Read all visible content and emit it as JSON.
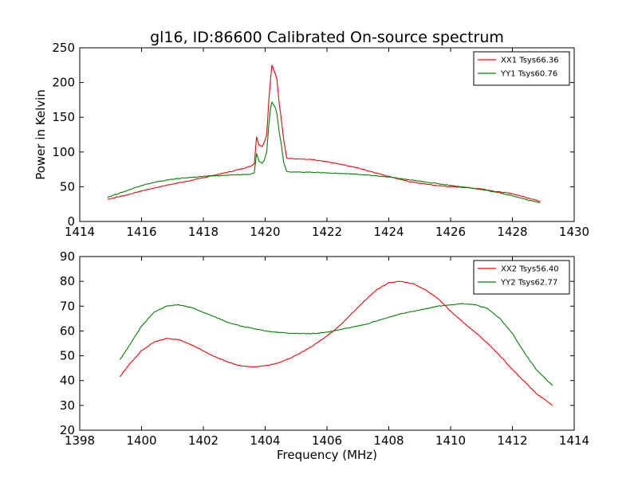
{
  "figure": {
    "title": "gl16, ID:86600 Calibrated On-source spectrum",
    "xlabel": "Frequency (MHz)",
    "ylabel": "Power in Kelvin"
  },
  "colors": {
    "red": "#ff0000",
    "green": "#008000"
  },
  "chart_data": [
    {
      "type": "line",
      "title": "gl16, ID:86600 Calibrated On-source spectrum",
      "xlabel": "",
      "ylabel": "Power in Kelvin",
      "xlim": [
        1414,
        1430
      ],
      "ylim": [
        0,
        250
      ],
      "xticks": [
        "1414",
        "1416",
        "1418",
        "1420",
        "1422",
        "1424",
        "1426",
        "1428",
        "1430"
      ],
      "yticks": [
        "0",
        "50",
        "100",
        "150",
        "200",
        "250"
      ],
      "legend_position": "top-right",
      "series": [
        {
          "name": "XX1 Tsys66.36",
          "color": "#ff0000",
          "x": [
            1414.9,
            1415.5,
            1416.0,
            1416.5,
            1417.0,
            1417.5,
            1418.0,
            1418.5,
            1419.0,
            1419.5,
            1419.65,
            1419.72,
            1419.8,
            1419.9,
            1419.97,
            1420.05,
            1420.12,
            1420.18,
            1420.22,
            1420.28,
            1420.33,
            1420.38,
            1420.45,
            1420.52,
            1420.6,
            1420.7,
            1421.0,
            1421.5,
            1422.0,
            1422.5,
            1423.0,
            1423.5,
            1424.0,
            1424.5,
            1425.0,
            1425.5,
            1426.0,
            1426.5,
            1427.0,
            1427.5,
            1428.0,
            1428.5,
            1428.9
          ],
          "y": [
            32,
            38,
            44,
            49,
            54,
            58,
            63,
            68,
            73,
            79,
            83,
            122,
            110,
            108,
            114,
            125,
            175,
            208,
            225,
            218,
            212,
            205,
            172,
            148,
            118,
            91,
            90,
            89,
            86,
            82,
            77,
            71,
            65,
            59,
            55,
            52,
            50,
            49,
            47,
            43,
            40,
            34,
            29
          ]
        },
        {
          "name": "YY1 Tsys60.76",
          "color": "#008000",
          "x": [
            1414.9,
            1415.5,
            1416.0,
            1416.5,
            1417.0,
            1417.5,
            1418.0,
            1418.5,
            1419.0,
            1419.5,
            1419.65,
            1419.72,
            1419.8,
            1419.9,
            1419.97,
            1420.05,
            1420.12,
            1420.18,
            1420.22,
            1420.28,
            1420.33,
            1420.38,
            1420.45,
            1420.52,
            1420.6,
            1420.7,
            1421.0,
            1421.5,
            1422.0,
            1422.5,
            1423.0,
            1423.5,
            1424.0,
            1424.5,
            1425.0,
            1425.5,
            1426.0,
            1426.5,
            1427.0,
            1427.5,
            1428.0,
            1428.5,
            1428.9
          ],
          "y": [
            35,
            44,
            52,
            57,
            61,
            63,
            65,
            66,
            67,
            68,
            70,
            98,
            86,
            84,
            88,
            100,
            140,
            165,
            172,
            168,
            164,
            155,
            130,
            112,
            85,
            72,
            71,
            71,
            70,
            69,
            68,
            66,
            64,
            61,
            58,
            55,
            52,
            49,
            46,
            42,
            37,
            31,
            27
          ]
        }
      ]
    },
    {
      "type": "line",
      "title": "",
      "xlabel": "Frequency (MHz)",
      "ylabel": "",
      "xlim": [
        1398,
        1414
      ],
      "ylim": [
        20,
        90
      ],
      "xticks": [
        "1398",
        "1400",
        "1402",
        "1404",
        "1406",
        "1408",
        "1410",
        "1412",
        "1414"
      ],
      "yticks": [
        "20",
        "30",
        "40",
        "50",
        "60",
        "70",
        "80",
        "90"
      ],
      "legend_position": "top-right",
      "series": [
        {
          "name": "XX2 Tsys56.40",
          "color": "#ff0000",
          "x": [
            1399.3,
            1399.6,
            1400.0,
            1400.4,
            1400.8,
            1401.2,
            1401.6,
            1402.0,
            1402.4,
            1402.8,
            1403.2,
            1403.6,
            1404.0,
            1404.4,
            1404.8,
            1405.2,
            1405.6,
            1406.0,
            1406.4,
            1406.8,
            1407.2,
            1407.6,
            1408.0,
            1408.4,
            1408.8,
            1409.2,
            1409.6,
            1410.0,
            1410.4,
            1410.8,
            1411.2,
            1411.6,
            1412.0,
            1412.4,
            1412.8,
            1413.3
          ],
          "y": [
            41.5,
            46.5,
            52,
            55.5,
            57,
            56.5,
            54.5,
            52,
            49.5,
            47.5,
            46,
            45.5,
            46,
            47,
            49,
            51.5,
            54.5,
            58,
            62,
            67,
            72,
            76.5,
            79.5,
            80,
            79,
            76.5,
            73,
            68,
            63.5,
            59.5,
            55,
            50,
            44.5,
            39.5,
            34.5,
            30
          ]
        },
        {
          "name": "YY2 Tsys62.77",
          "color": "#008000",
          "x": [
            1399.3,
            1399.6,
            1400.0,
            1400.4,
            1400.8,
            1401.2,
            1401.6,
            1402.0,
            1402.4,
            1402.8,
            1403.2,
            1403.6,
            1404.0,
            1404.4,
            1404.8,
            1405.2,
            1405.6,
            1406.0,
            1406.4,
            1406.8,
            1407.2,
            1407.6,
            1408.0,
            1408.4,
            1408.8,
            1409.2,
            1409.6,
            1410.0,
            1410.4,
            1410.8,
            1411.2,
            1411.6,
            1412.0,
            1412.4,
            1412.8,
            1413.3
          ],
          "y": [
            48.5,
            54,
            62,
            67.5,
            70,
            70.5,
            69.5,
            67.5,
            65.5,
            63.5,
            62,
            61,
            60,
            59.5,
            59,
            59,
            59,
            59.5,
            60.5,
            61.5,
            62.5,
            64,
            65.5,
            67,
            68,
            69,
            70,
            70.5,
            71,
            70.5,
            69,
            65,
            59,
            51,
            44,
            38
          ]
        }
      ]
    }
  ]
}
